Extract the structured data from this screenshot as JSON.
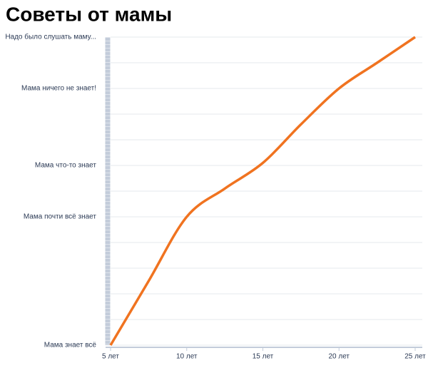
{
  "chart_data": {
    "type": "line",
    "title": "Советы от мамы",
    "series": [
      {
        "name": null,
        "color": "#f07320",
        "x": [
          5,
          7.5,
          10,
          12.5,
          15,
          17.5,
          20,
          22.5,
          25
        ],
        "values": [
          0,
          2.5,
          5,
          6.1,
          7.1,
          8.6,
          10,
          11,
          12
        ]
      }
    ],
    "xlim": [
      5,
      25
    ],
    "xticks": [
      {
        "value": 5,
        "label": "5 лет"
      },
      {
        "value": 10,
        "label": "10 лет"
      },
      {
        "value": 15,
        "label": "15 лет"
      },
      {
        "value": 20,
        "label": "20 лет"
      },
      {
        "value": 25,
        "label": "25 лет"
      }
    ],
    "ylim": [
      0,
      12
    ],
    "yticks": [
      {
        "value": 0,
        "label": "Мама знает всё"
      },
      {
        "value": 5,
        "label": "Мама почти всё знает"
      },
      {
        "value": 7,
        "label": "Мама что-то знает"
      },
      {
        "value": 10,
        "label": "Мама ничего не знает!"
      },
      {
        "value": 12,
        "label": "Надо было слушать маму..."
      }
    ],
    "ygrid": [
      0,
      1,
      2,
      3,
      4,
      5,
      6,
      7,
      8,
      9,
      10,
      11,
      12
    ],
    "grid": true
  }
}
